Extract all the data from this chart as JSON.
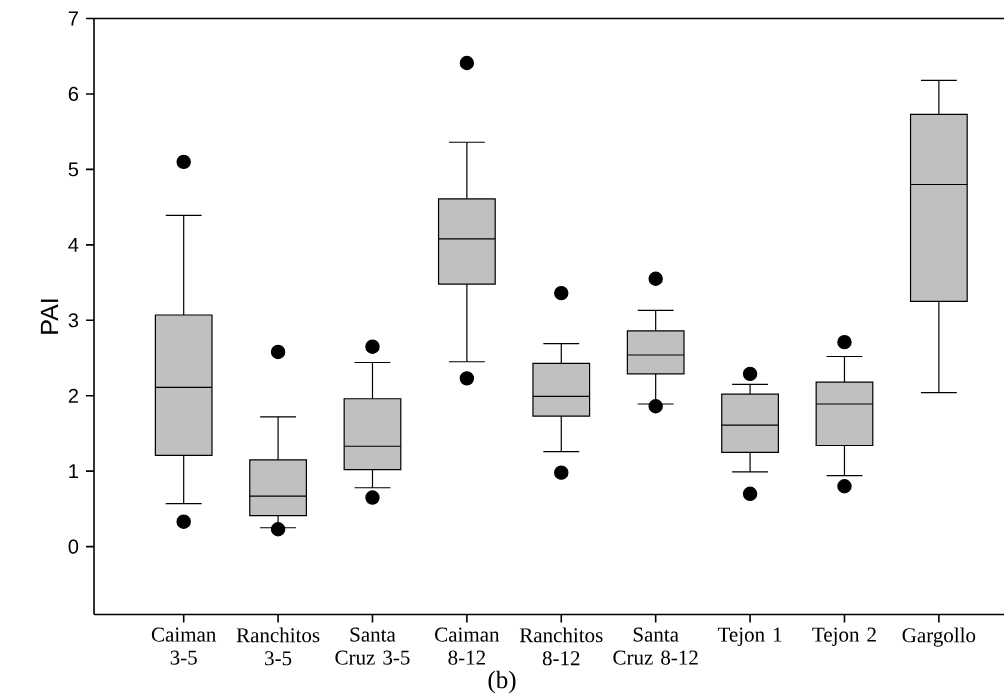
{
  "chart_data": {
    "type": "box",
    "ylabel": "PAI",
    "categories": [
      "Caiman 3-5",
      "Ranchitos 3-5",
      "Santa Cruz 3-5",
      "Caiman 8-12",
      "Ranchitos 8-12",
      "Santa Cruz 8-12",
      "Tejon 1",
      "Tejon 2",
      "Gargollo"
    ],
    "series": [
      {
        "color": "#c0c0c0",
        "boxes": [
          {
            "low": 0.57,
            "q1": 1.21,
            "median": 2.11,
            "q3": 3.07,
            "high": 4.39,
            "outliers": [
              5.1,
              0.33
            ]
          },
          {
            "low": 0.25,
            "q1": 0.41,
            "median": 0.67,
            "q3": 1.15,
            "high": 1.72,
            "outliers": [
              2.58,
              0.23
            ]
          },
          {
            "low": 0.78,
            "q1": 1.02,
            "median": 1.33,
            "q3": 1.96,
            "high": 2.44,
            "outliers": [
              2.65,
              0.65
            ]
          },
          {
            "low": 2.45,
            "q1": 3.48,
            "median": 4.08,
            "q3": 4.61,
            "high": 5.36,
            "outliers": [
              6.41,
              2.23
            ]
          },
          {
            "low": 1.26,
            "q1": 1.73,
            "median": 1.99,
            "q3": 2.43,
            "high": 2.69,
            "outliers": [
              3.36,
              0.98
            ]
          },
          {
            "low": 1.89,
            "q1": 2.29,
            "median": 2.54,
            "q3": 2.86,
            "high": 3.13,
            "outliers": [
              3.55,
              1.86
            ]
          },
          {
            "low": 0.99,
            "q1": 1.25,
            "median": 1.61,
            "q3": 2.02,
            "high": 2.15,
            "outliers": [
              2.29,
              0.7
            ]
          },
          {
            "low": 0.94,
            "q1": 1.34,
            "median": 1.89,
            "q3": 2.18,
            "high": 2.52,
            "outliers": [
              2.71,
              0.8
            ]
          },
          {
            "low": 2.04,
            "q1": 3.25,
            "median": 4.8,
            "q3": 5.73,
            "high": 6.18
          }
        ]
      }
    ],
    "ylim": [
      -0.9,
      7
    ],
    "yticks": [
      0,
      1,
      2,
      3,
      4,
      5,
      6,
      7
    ],
    "marker": "circle",
    "annotations": [
      "(b)"
    ]
  }
}
